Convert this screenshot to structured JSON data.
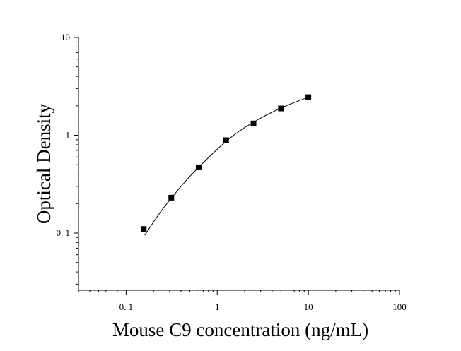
{
  "chart_data": {
    "type": "scatter",
    "title": "",
    "xlabel": "Mouse C9 concentration (ng/mL)",
    "ylabel": "Optical Density",
    "x_scale": "log",
    "y_scale": "log",
    "xlim": [
      0.03,
      100
    ],
    "ylim": [
      0.026,
      10
    ],
    "x_ticks": [
      {
        "value": 0.1,
        "label": "0. 1"
      },
      {
        "value": 1,
        "label": "1"
      },
      {
        "value": 10,
        "label": "10"
      },
      {
        "value": 100,
        "label": "100"
      }
    ],
    "y_ticks": [
      {
        "value": 0.1,
        "label": "0. 1"
      },
      {
        "value": 1,
        "label": "1"
      },
      {
        "value": 10,
        "label": "10"
      }
    ],
    "grid": false,
    "legend": false,
    "series": [
      {
        "marker": "square",
        "color": "#000000",
        "x": [
          0.156,
          0.313,
          0.625,
          1.25,
          2.5,
          5,
          10
        ],
        "y": [
          0.11,
          0.23,
          0.47,
          0.89,
          1.32,
          1.88,
          2.45
        ]
      }
    ],
    "fit_curve": {
      "color": "#000000",
      "x": [
        0.16,
        0.2,
        0.25,
        0.31,
        0.4,
        0.5,
        0.625,
        0.8,
        1.0,
        1.25,
        1.6,
        2.0,
        2.5,
        3.2,
        4.0,
        5.0,
        6.3,
        8.0,
        10
      ],
      "y": [
        0.095,
        0.13,
        0.175,
        0.225,
        0.3,
        0.38,
        0.47,
        0.59,
        0.72,
        0.87,
        1.04,
        1.2,
        1.36,
        1.55,
        1.72,
        1.9,
        2.08,
        2.27,
        2.45
      ]
    }
  }
}
